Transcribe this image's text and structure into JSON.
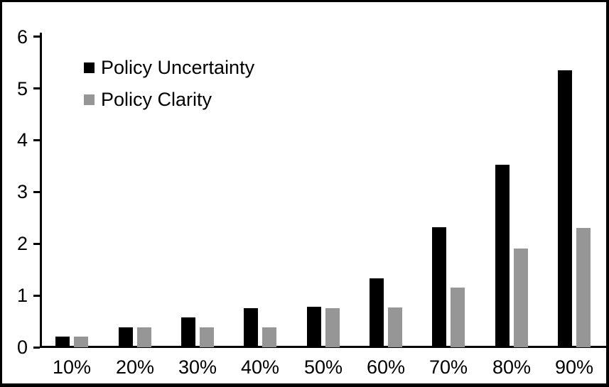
{
  "chart_data": {
    "type": "bar",
    "title": "",
    "xlabel": "",
    "ylabel": "",
    "categories": [
      "10%",
      "20%",
      "30%",
      "40%",
      "50%",
      "60%",
      "70%",
      "80%",
      "90%"
    ],
    "series": [
      {
        "name": "Policy Uncertainty",
        "color": "#000000",
        "values": [
          0.2,
          0.38,
          0.57,
          0.76,
          0.78,
          1.33,
          2.32,
          3.52,
          5.35
        ]
      },
      {
        "name": "Policy Clarity",
        "color": "#969696",
        "values": [
          0.2,
          0.38,
          0.38,
          0.38,
          0.76,
          0.77,
          1.15,
          1.9,
          2.3
        ]
      }
    ],
    "y_ticks": [
      0,
      1,
      2,
      3,
      4,
      5,
      6
    ],
    "ylim": [
      0,
      6
    ],
    "grid": false,
    "legend_position": "top-left",
    "axis_color": "#000000",
    "text_color": "#000000",
    "frame_border_color": "#000000",
    "background_color": "#ffffff"
  }
}
